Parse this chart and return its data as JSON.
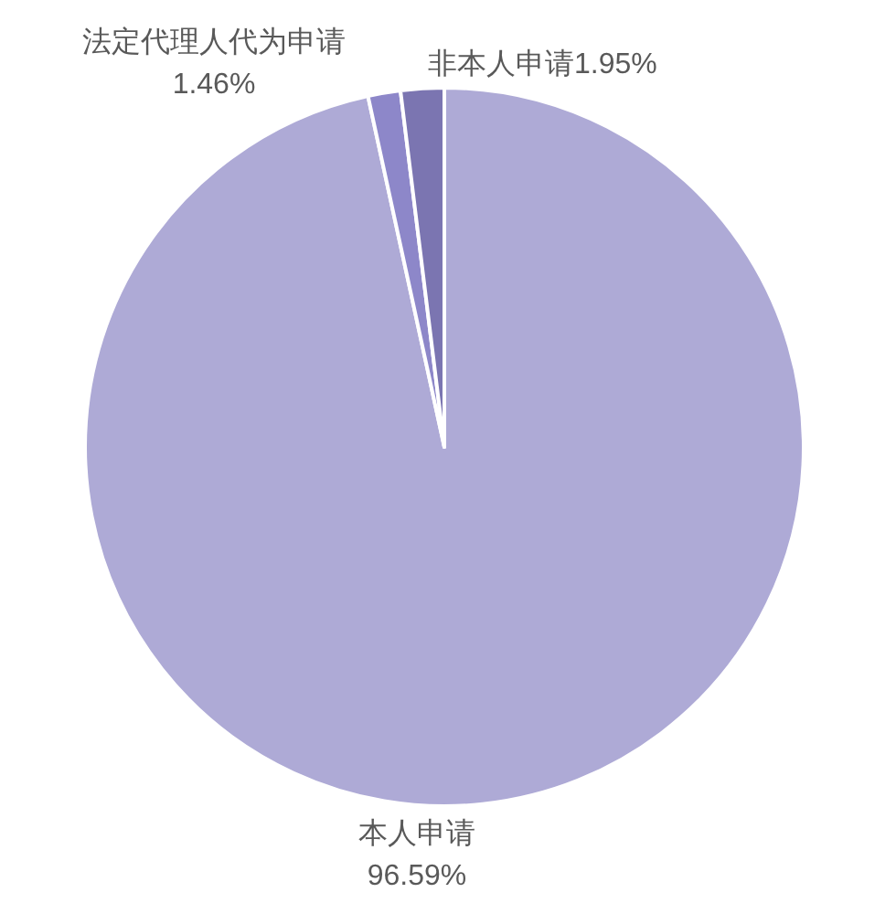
{
  "chart_data": {
    "type": "pie",
    "categories": [
      "本人申请",
      "法定代理人代为申请",
      "非本人申请"
    ],
    "values": [
      96.59,
      1.46,
      1.95
    ],
    "colors": [
      "#aeaad6",
      "#8d87c9",
      "#7b75b1"
    ],
    "value_labels": [
      "96.59%",
      "1.46%",
      "1.95%"
    ]
  }
}
